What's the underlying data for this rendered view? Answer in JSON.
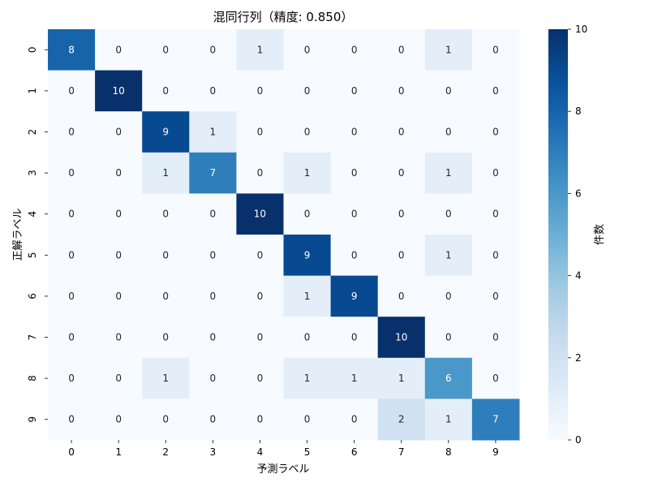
{
  "chart_data": {
    "type": "heatmap",
    "title": "混同行列（精度: 0.850）",
    "xlabel": "予測ラベル",
    "ylabel": "正解ラベル",
    "x_categories": [
      "0",
      "1",
      "2",
      "3",
      "4",
      "5",
      "6",
      "7",
      "8",
      "9"
    ],
    "y_categories": [
      "0",
      "1",
      "2",
      "3",
      "4",
      "5",
      "6",
      "7",
      "8",
      "9"
    ],
    "values": [
      [
        8,
        0,
        0,
        0,
        1,
        0,
        0,
        0,
        1,
        0
      ],
      [
        0,
        10,
        0,
        0,
        0,
        0,
        0,
        0,
        0,
        0
      ],
      [
        0,
        0,
        9,
        1,
        0,
        0,
        0,
        0,
        0,
        0
      ],
      [
        0,
        0,
        1,
        7,
        0,
        1,
        0,
        0,
        1,
        0
      ],
      [
        0,
        0,
        0,
        0,
        10,
        0,
        0,
        0,
        0,
        0
      ],
      [
        0,
        0,
        0,
        0,
        0,
        9,
        0,
        0,
        1,
        0
      ],
      [
        0,
        0,
        0,
        0,
        0,
        1,
        9,
        0,
        0,
        0
      ],
      [
        0,
        0,
        0,
        0,
        0,
        0,
        0,
        10,
        0,
        0
      ],
      [
        0,
        0,
        1,
        0,
        0,
        1,
        1,
        1,
        6,
        0
      ],
      [
        0,
        0,
        0,
        0,
        0,
        0,
        0,
        2,
        1,
        7
      ]
    ],
    "colorbar": {
      "label": "件数",
      "min": 0,
      "max": 10,
      "ticks": [
        0,
        2,
        4,
        6,
        8,
        10
      ],
      "colormap": "Blues"
    }
  }
}
